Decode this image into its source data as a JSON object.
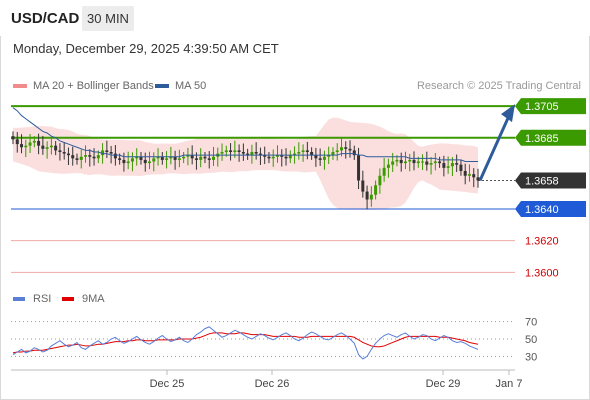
{
  "header": {
    "symbol": "USD/CAD",
    "interval": "30 MIN"
  },
  "timestamp": "Monday, December 29, 2025 4:39:50 AM CET",
  "legend": {
    "bollinger": {
      "label": "MA 20 + Bollinger Bands",
      "color": "#f28b8b"
    },
    "ma50": {
      "label": "MA 50",
      "color": "#2e5c9a"
    },
    "credit": "Research © 2025 Trading Central"
  },
  "rsi_legend": {
    "rsi": {
      "label": "RSI",
      "color": "#5a7fd6"
    },
    "ma9": {
      "label": "9MA",
      "color": "#e00000"
    }
  },
  "chart_data": {
    "type": "line",
    "subtype": "candlestick",
    "x_ticks": [
      "Dec 25",
      "Dec 26",
      "Dec 29",
      "Jan 7"
    ],
    "price_ylim": [
      1.3592,
      1.3712
    ],
    "levels": [
      {
        "label": "1.3705",
        "value": 1.3705,
        "kind": "resistance",
        "color": "#3a9a00"
      },
      {
        "label": "1.3685",
        "value": 1.3685,
        "kind": "resistance",
        "color": "#3a9a00"
      },
      {
        "label": "1.3658",
        "value": 1.3658,
        "kind": "current",
        "color": "#333333"
      },
      {
        "label": "1.3640",
        "value": 1.364,
        "kind": "support",
        "color": "#1f5bd6"
      },
      {
        "label": "1.3620",
        "value": 1.362,
        "kind": "support-minor",
        "color": "#d10000"
      },
      {
        "label": "1.3600",
        "value": 1.36,
        "kind": "support-minor",
        "color": "#d10000"
      }
    ],
    "close_series": [
      1.3684,
      1.3681,
      1.3679,
      1.368,
      1.3682,
      1.3683,
      1.368,
      1.3678,
      1.3679,
      1.368,
      1.3677,
      1.3676,
      1.3675,
      1.3674,
      1.3672,
      1.3671,
      1.3673,
      1.3674,
      1.3673,
      1.3672,
      1.3674,
      1.3677,
      1.3676,
      1.3675,
      1.3672,
      1.3671,
      1.3669,
      1.367,
      1.3672,
      1.3673,
      1.3671,
      1.3669,
      1.367,
      1.3672,
      1.3673,
      1.3671,
      1.3672,
      1.3673,
      1.3671,
      1.3672,
      1.3673,
      1.3674,
      1.3672,
      1.3671,
      1.3673,
      1.3672,
      1.3671,
      1.3673,
      1.3675,
      1.3676,
      1.3677,
      1.3676,
      1.3677,
      1.3676,
      1.3675,
      1.3674,
      1.3676,
      1.3675,
      1.3674,
      1.3673,
      1.3672,
      1.3673,
      1.3674,
      1.3673,
      1.3672,
      1.3674,
      1.3675,
      1.3676,
      1.3677,
      1.3676,
      1.3674,
      1.3672,
      1.3671,
      1.3673,
      1.3674,
      1.3676,
      1.3677,
      1.3679,
      1.3678,
      1.3677,
      1.3674,
      1.3658,
      1.3651,
      1.3646,
      1.3649,
      1.3655,
      1.3661,
      1.3666,
      1.3668,
      1.367,
      1.3671,
      1.3669,
      1.367,
      1.3671,
      1.3669,
      1.367,
      1.367,
      1.3668,
      1.3669,
      1.367,
      1.3669,
      1.3666,
      1.3667,
      1.3669,
      1.3668,
      1.3664,
      1.3661,
      1.3662,
      1.366,
      1.3658
    ],
    "ma50_series": [
      1.3704,
      1.3702,
      1.3699,
      1.3697,
      1.3695,
      1.3693,
      1.3691,
      1.3689,
      1.3688,
      1.3686,
      1.3685,
      1.3683,
      1.3682,
      1.3681,
      1.368,
      1.3679,
      1.3678,
      1.3677,
      1.3677,
      1.3676,
      1.3676,
      1.3675,
      1.3675,
      1.3674,
      1.3674,
      1.3674,
      1.3673,
      1.3673,
      1.3673,
      1.3673,
      1.3673,
      1.3673,
      1.3673,
      1.3673,
      1.3673,
      1.3673,
      1.3673,
      1.3673,
      1.3673,
      1.3673,
      1.3674,
      1.3674,
      1.3674,
      1.3674,
      1.3674,
      1.3674,
      1.3674,
      1.3674,
      1.3674,
      1.3674,
      1.3674,
      1.3674,
      1.3674,
      1.3674,
      1.3674,
      1.3674,
      1.3674,
      1.3674,
      1.3674,
      1.3674,
      1.3674,
      1.3674,
      1.3674,
      1.3674,
      1.3674,
      1.3674,
      1.3674,
      1.3674,
      1.3674,
      1.3674,
      1.3674,
      1.3674,
      1.3674,
      1.3674,
      1.3674,
      1.3674,
      1.3674,
      1.3675,
      1.3675,
      1.3675,
      1.3675,
      1.3674,
      1.3674,
      1.3673,
      1.3673,
      1.3673,
      1.3673,
      1.3673,
      1.3673,
      1.3673,
      1.3673,
      1.3673,
      1.3673,
      1.3672,
      1.3672,
      1.3672,
      1.3672,
      1.3672,
      1.3672,
      1.3672,
      1.3671,
      1.3671,
      1.3671,
      1.3671,
      1.3671,
      1.3671,
      1.367,
      1.367,
      1.367,
      1.367
    ],
    "projection": {
      "from": 1.3658,
      "to": 1.3705
    },
    "rsi": {
      "ylim": [
        20,
        80
      ],
      "y_ticks": [
        70,
        50,
        30
      ],
      "rsi_series": [
        32,
        35,
        38,
        34,
        36,
        40,
        38,
        35,
        37,
        42,
        45,
        48,
        44,
        41,
        43,
        46,
        40,
        38,
        42,
        45,
        48,
        44,
        46,
        50,
        52,
        48,
        45,
        47,
        50,
        53,
        49,
        46,
        44,
        47,
        51,
        54,
        50,
        47,
        49,
        52,
        48,
        46,
        50,
        55,
        58,
        62,
        64,
        60,
        56,
        52,
        54,
        57,
        60,
        58,
        55,
        52,
        50,
        53,
        56,
        54,
        51,
        49,
        52,
        55,
        57,
        54,
        50,
        48,
        51,
        55,
        58,
        56,
        53,
        50,
        49,
        52,
        55,
        57,
        54,
        50,
        45,
        32,
        27,
        30,
        38,
        45,
        50,
        54,
        56,
        54,
        52,
        55,
        57,
        53,
        50,
        52,
        55,
        54,
        50,
        48,
        51,
        54,
        52,
        48,
        46,
        47,
        45,
        42,
        40,
        38
      ],
      "ma9_series": [
        34,
        35,
        35,
        36,
        36,
        37,
        37,
        37,
        38,
        39,
        40,
        41,
        42,
        43,
        43,
        44,
        43,
        42,
        42,
        43,
        44,
        44,
        45,
        46,
        47,
        47,
        47,
        48,
        48,
        49,
        49,
        48,
        48,
        48,
        49,
        49,
        49,
        49,
        49,
        50,
        50,
        50,
        50,
        51,
        52,
        54,
        56,
        57,
        57,
        57,
        56,
        56,
        56,
        57,
        57,
        56,
        55,
        55,
        55,
        55,
        54,
        53,
        53,
        53,
        53,
        53,
        53,
        52,
        52,
        52,
        53,
        53,
        53,
        53,
        53,
        53,
        53,
        53,
        53,
        53,
        52,
        49,
        46,
        44,
        42,
        41,
        41,
        42,
        44,
        46,
        48,
        50,
        52,
        53,
        53,
        53,
        53,
        53,
        53,
        53,
        52,
        52,
        52,
        51,
        50,
        49,
        48,
        46,
        45,
        44
      ]
    }
  }
}
